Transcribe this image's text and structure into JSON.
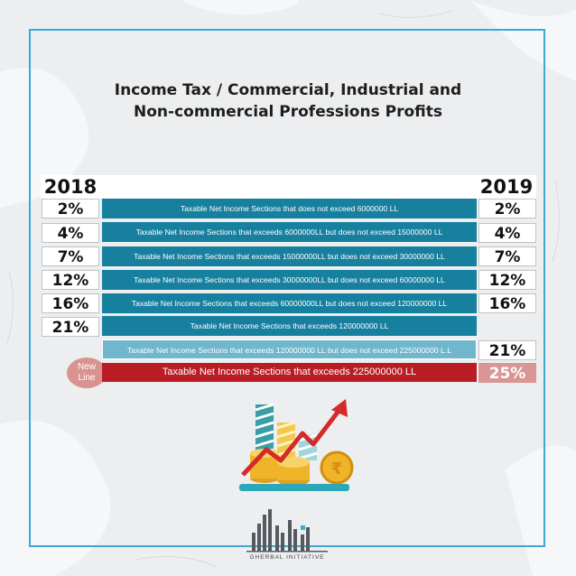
{
  "title": {
    "line1": "Income Tax / Commercial, Industrial and",
    "line2": "Non-commercial Professions Profits"
  },
  "years": {
    "left": "2018",
    "right": "2019"
  },
  "rows": [
    {
      "rate_2018": "2%",
      "section": "Taxable Net Income Sections that does not exceed 6000000 LL",
      "rate_2019": "2%"
    },
    {
      "rate_2018": "4%",
      "section": "Taxable Net Income Sections that exceeds 6000000LL but does not exceed 15000000 LL",
      "rate_2019": "4%"
    },
    {
      "rate_2018": "7%",
      "section": "Taxable Net Income Sections that exceeds 15000000LL but does not exceed 30000000 LL",
      "rate_2019": "7%"
    },
    {
      "rate_2018": "12%",
      "section": "Taxable Net Income Sections that exceeds 30000000LL but does not exceed 60000000 LL",
      "rate_2019": "12%"
    },
    {
      "rate_2018": "16%",
      "section": "Taxable Net Income Sections that exceeds 60000000LL but does not exceed 120000000 LL",
      "rate_2019": "16%"
    }
  ],
  "row_2018_only": {
    "rate_2018": "21%",
    "section": "Taxable Net Income Sections that exceeds 120000000 LL"
  },
  "row_2019_only": {
    "section": "Taxable Net Income Sections that exceeds 120000000 LL but does not exceed 225000000 L.L",
    "rate_2019": "21%"
  },
  "new_line": {
    "badge_line1": "New",
    "badge_line2": "Line",
    "section": "Taxable Net Income Sections that exceeds 225000000 LL",
    "rate_2019": "25%"
  },
  "logo": {
    "name": "GHERBAL INITIATIVE"
  },
  "colors": {
    "frame": "#3fa6d6",
    "band": "#18809f",
    "band_light": "#70b6cc",
    "new_band": "#b91d23",
    "new_rate": "#d99694"
  },
  "icons": [
    "coins-bar-chart-growth-arrow-icon",
    "rupee-coin-icon",
    "gherbal-logo-bars-icon"
  ]
}
